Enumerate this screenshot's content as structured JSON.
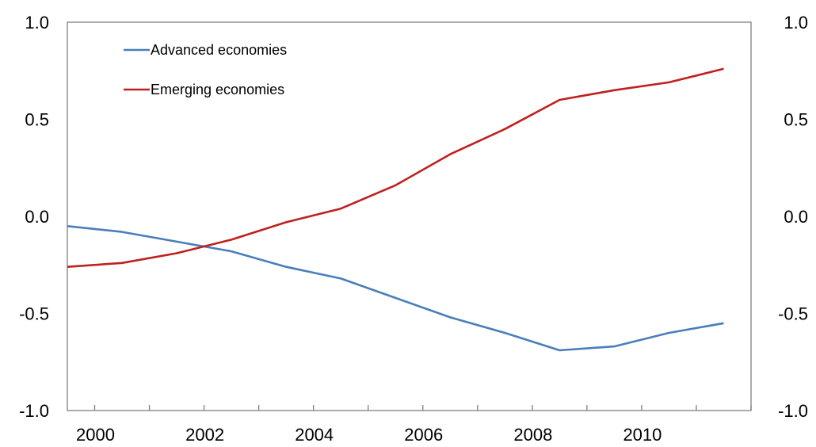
{
  "chart_data": {
    "type": "line",
    "title": "",
    "xlabel": "",
    "ylabel": "",
    "x": [
      1999.5,
      2000.5,
      2001.5,
      2002.5,
      2003.5,
      2004.5,
      2005.5,
      2006.5,
      2007.5,
      2008.5,
      2009.5,
      2010.5,
      2011.5
    ],
    "xlim": [
      1999.5,
      2012.0
    ],
    "ylim": [
      -1.0,
      1.0
    ],
    "x_ticks": [
      2000,
      2001,
      2002,
      2003,
      2004,
      2005,
      2006,
      2007,
      2008,
      2009,
      2010,
      2011,
      2012
    ],
    "x_tick_labels": [
      "2000",
      "2002",
      "2004",
      "2006",
      "2008",
      "2010"
    ],
    "x_tick_label_values": [
      2000,
      2002,
      2004,
      2006,
      2008,
      2010
    ],
    "y_ticks": [
      1.0,
      0.5,
      0.0,
      -0.5,
      -1.0
    ],
    "y_tick_labels": [
      "1.0",
      "0.5",
      "0.0",
      "-0.5",
      "-1.0"
    ],
    "y_tick_labels_right": [
      "1.0",
      "0.5",
      "0.0",
      "-0.5",
      "-1.0"
    ],
    "grid": false,
    "legend_position": "top-left",
    "series": [
      {
        "name": "Advanced economies",
        "color": "#4a7ebb",
        "values": [
          -0.05,
          -0.08,
          -0.13,
          -0.18,
          -0.26,
          -0.32,
          -0.42,
          -0.52,
          -0.6,
          -0.69,
          -0.67,
          -0.6,
          -0.55
        ]
      },
      {
        "name": "Emerging economies",
        "color": "#c0201e",
        "values": [
          -0.26,
          -0.24,
          -0.19,
          -0.12,
          -0.03,
          0.04,
          0.16,
          0.32,
          0.45,
          0.6,
          0.65,
          0.69,
          0.76
        ]
      }
    ]
  }
}
